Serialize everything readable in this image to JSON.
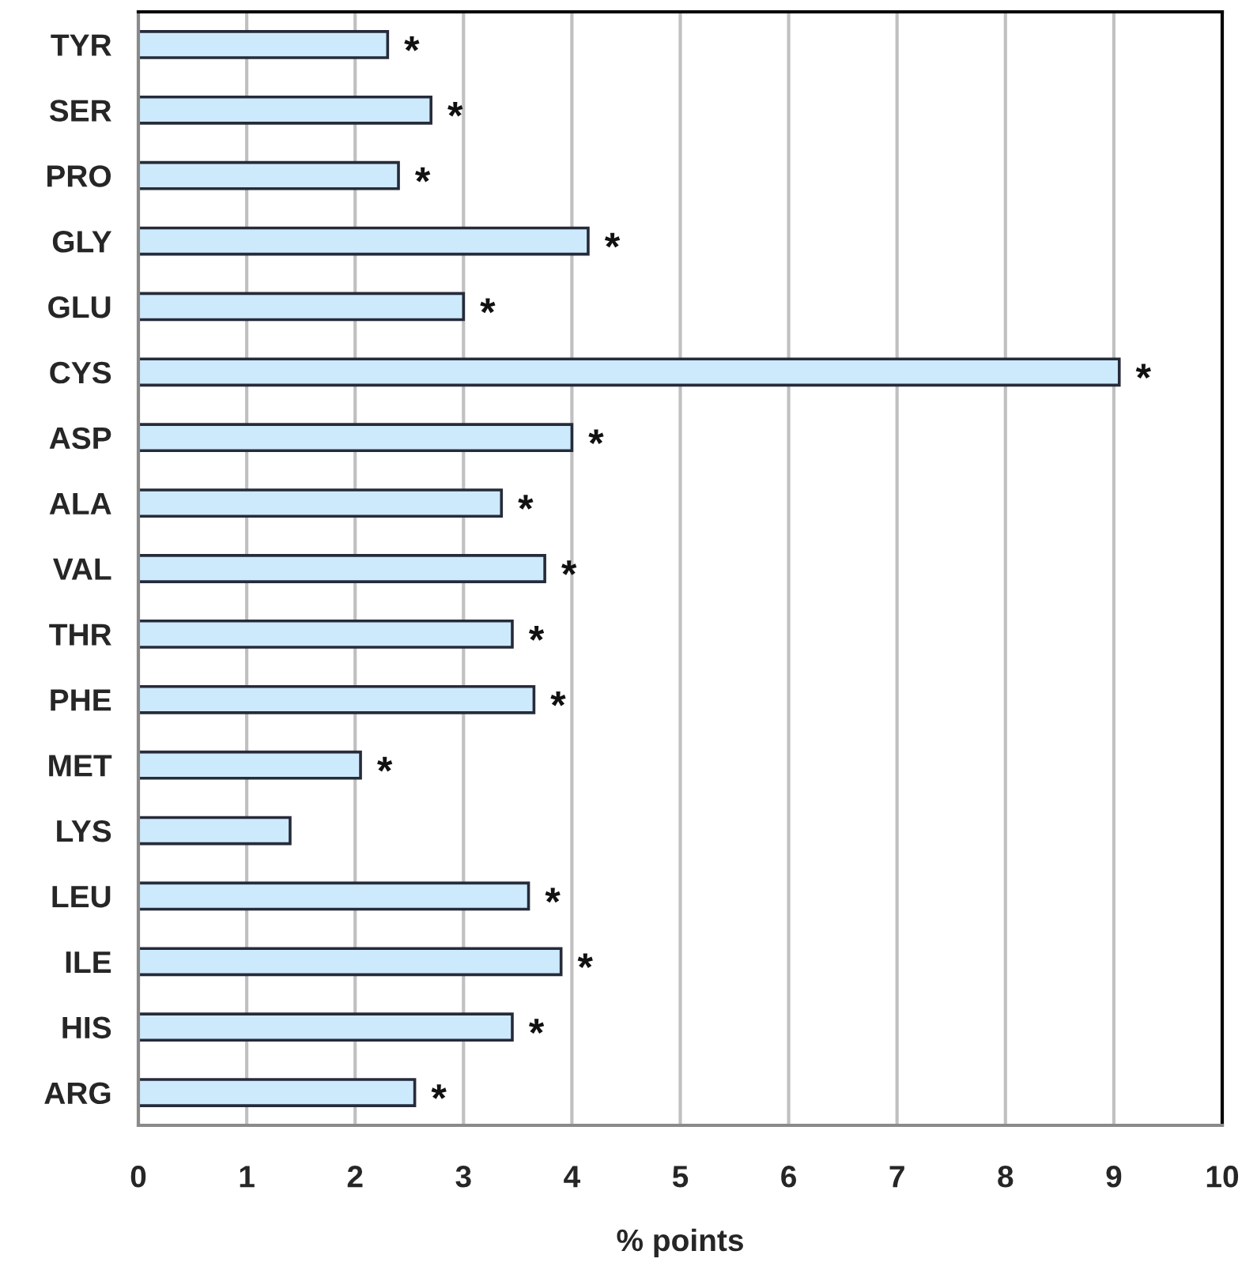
{
  "chart_data": {
    "type": "bar",
    "orientation": "horizontal",
    "categories": [
      "TYR",
      "SER",
      "PRO",
      "GLY",
      "GLU",
      "CYS",
      "ASP",
      "ALA",
      "VAL",
      "THR",
      "PHE",
      "MET",
      "LYS",
      "LEU",
      "ILE",
      "HIS",
      "ARG"
    ],
    "values": [
      2.3,
      2.7,
      2.4,
      4.15,
      3.0,
      9.05,
      4.0,
      3.35,
      3.75,
      3.45,
      3.65,
      2.05,
      1.4,
      3.6,
      3.9,
      3.45,
      2.55
    ],
    "color": "#cdeafc",
    "xlabel": "% points",
    "xlim": [
      0,
      10
    ],
    "xticks": [
      0,
      1,
      2,
      3,
      4,
      5,
      6,
      7,
      8,
      9,
      10
    ],
    "grid": "x",
    "annotations": [
      {
        "text": "*",
        "x": 2.3,
        "y": "TYR"
      },
      {
        "text": "*",
        "x": 2.7,
        "y": "SER"
      },
      {
        "text": "*",
        "x": 2.4,
        "y": "PRO"
      },
      {
        "text": "*",
        "x": 4.15,
        "y": "GLY"
      },
      {
        "text": "*",
        "x": 3.0,
        "y": "GLU"
      },
      {
        "text": "*",
        "x": 9.05,
        "y": "CYS"
      },
      {
        "text": "*",
        "x": 4.0,
        "y": "ASP"
      },
      {
        "text": "*",
        "x": 3.35,
        "y": "ALA"
      },
      {
        "text": "*",
        "x": 3.75,
        "y": "VAL"
      },
      {
        "text": "*",
        "x": 3.45,
        "y": "THR"
      },
      {
        "text": "*",
        "x": 3.65,
        "y": "PHE"
      },
      {
        "text": "*",
        "x": 2.05,
        "y": "MET"
      },
      {
        "text": "*",
        "x": 3.6,
        "y": "LEU"
      },
      {
        "text": "*",
        "x": 3.9,
        "y": "ILE"
      },
      {
        "text": "*",
        "x": 3.45,
        "y": "HIS"
      },
      {
        "text": "*",
        "x": 2.55,
        "y": "ARG"
      }
    ]
  }
}
